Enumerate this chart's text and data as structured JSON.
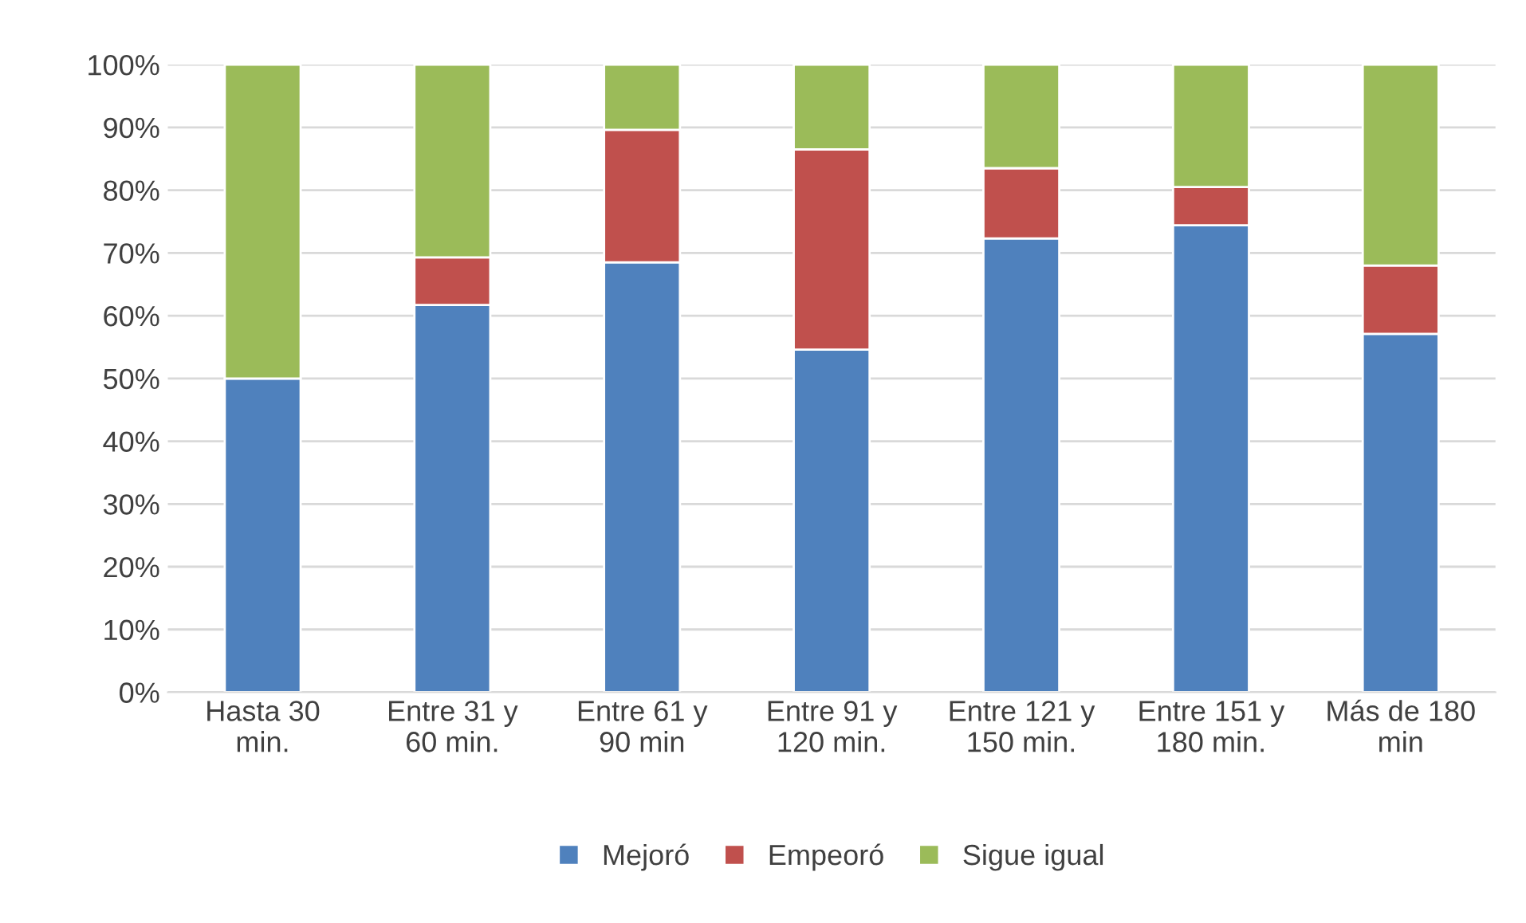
{
  "chart_data": {
    "type": "bar",
    "stacked": true,
    "categories": [
      "Hasta 30\nmin.",
      "Entre 31 y\n60 min.",
      "Entre 61 y\n90 min",
      "Entre 91 y\n120 min.",
      "Entre 121 y\n150 min.",
      "Entre 151 y\n180 min.",
      "Más de 180\nmin"
    ],
    "series": [
      {
        "name": "Mejoró",
        "color": "#4f81bd",
        "values": [
          50,
          61.7,
          68.5,
          54.6,
          72.3,
          74.4,
          57.1
        ]
      },
      {
        "name": "Empeoró",
        "color": "#c0504d",
        "values": [
          0,
          7.6,
          21.1,
          31.9,
          11.2,
          6.1,
          10.9
        ]
      },
      {
        "name": "Sigue igual",
        "color": "#9bbb59",
        "values": [
          50,
          30.7,
          10.4,
          13.5,
          16.5,
          19.5,
          32.0
        ]
      }
    ],
    "ylim": [
      0,
      100
    ],
    "yticks": [
      {
        "value": 0,
        "label": "0%"
      },
      {
        "value": 10,
        "label": "10%"
      },
      {
        "value": 20,
        "label": "20%"
      },
      {
        "value": 30,
        "label": "30%"
      },
      {
        "value": 40,
        "label": "40%"
      },
      {
        "value": 50,
        "label": "50%"
      },
      {
        "value": 60,
        "label": "60%"
      },
      {
        "value": 70,
        "label": "70%"
      },
      {
        "value": 80,
        "label": "80%"
      },
      {
        "value": 90,
        "label": "90%"
      },
      {
        "value": 100,
        "label": "100%"
      }
    ],
    "grid": "y",
    "legend": "bottom"
  }
}
